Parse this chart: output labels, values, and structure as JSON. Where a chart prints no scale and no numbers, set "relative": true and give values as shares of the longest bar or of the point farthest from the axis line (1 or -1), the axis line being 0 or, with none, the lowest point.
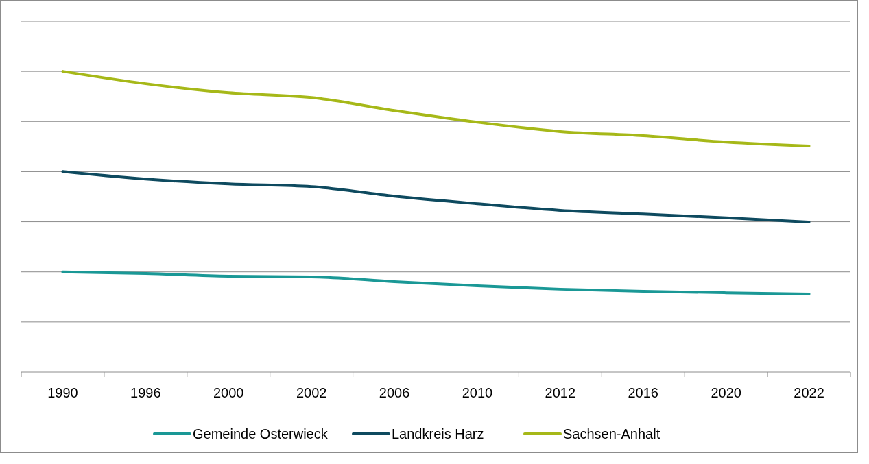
{
  "chart_data": {
    "type": "line",
    "relative": true,
    "grid": true,
    "legend": "bottom",
    "categories": [
      "1990",
      "1996",
      "2000",
      "2002",
      "2006",
      "2010",
      "2012",
      "2016",
      "2020",
      "2022"
    ],
    "series": [
      {
        "name": "Gemeinde Osterwieck",
        "color": "#1a9896",
        "values": [
          0.333,
          0.328,
          0.319,
          0.317,
          0.301,
          0.287,
          0.276,
          0.269,
          0.264,
          0.26
        ]
      },
      {
        "name": "Landkreis Harz",
        "color": "#0e4a5f",
        "values": [
          0.667,
          0.642,
          0.626,
          0.617,
          0.585,
          0.56,
          0.538,
          0.526,
          0.513,
          0.499
        ]
      },
      {
        "name": "Sachsen-Anhalt",
        "color": "#a6b818",
        "values": [
          1,
          0.959,
          0.929,
          0.913,
          0.87,
          0.831,
          0.8,
          0.786,
          0.765,
          0.752
        ]
      }
    ]
  }
}
